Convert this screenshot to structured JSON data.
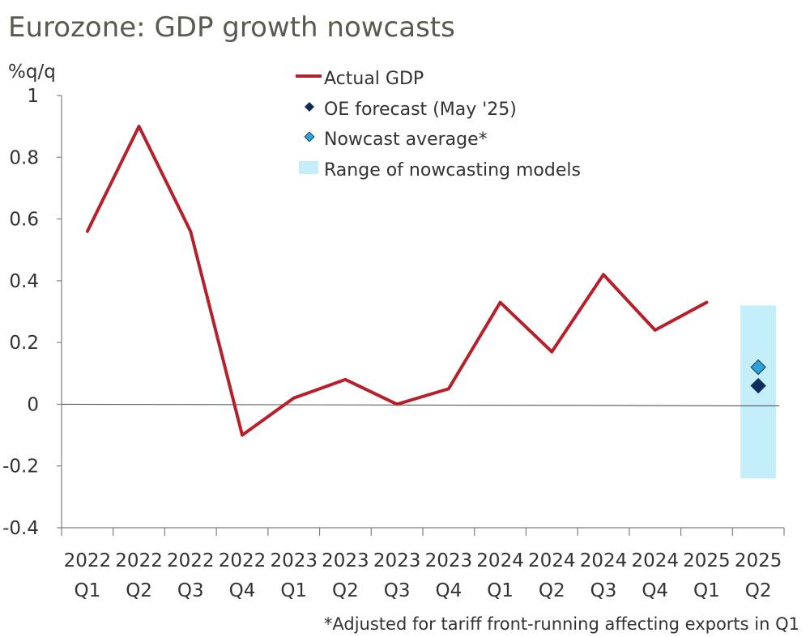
{
  "title": "Eurozone: GDP growth nowcasts",
  "chart_data": {
    "type": "line",
    "title": "Eurozone: GDP growth nowcasts",
    "ylabel": "%q/q",
    "xlabel": "",
    "ylim": [
      -0.4,
      1
    ],
    "yticks": [
      "1",
      "0.8",
      "0.6",
      "0.4",
      "0.2",
      "0",
      "-0.2",
      "-0.4"
    ],
    "ytick_values": [
      1,
      0.8,
      0.6,
      0.4,
      0.2,
      0,
      -0.2,
      -0.4
    ],
    "categories": [
      {
        "year": "2022",
        "q": "Q1"
      },
      {
        "year": "2022",
        "q": "Q2"
      },
      {
        "year": "2022",
        "q": "Q3"
      },
      {
        "year": "2022",
        "q": "Q4"
      },
      {
        "year": "2023",
        "q": "Q1"
      },
      {
        "year": "2023",
        "q": "Q2"
      },
      {
        "year": "2023",
        "q": "Q3"
      },
      {
        "year": "2023",
        "q": "Q4"
      },
      {
        "year": "2024",
        "q": "Q1"
      },
      {
        "year": "2024",
        "q": "Q2"
      },
      {
        "year": "2024",
        "q": "Q3"
      },
      {
        "year": "2024",
        "q": "Q4"
      },
      {
        "year": "2025",
        "q": "Q1"
      },
      {
        "year": "2025",
        "q": "Q2"
      }
    ],
    "series": [
      {
        "name": "Actual GDP",
        "color": "#b5202a",
        "values": [
          0.56,
          0.9,
          0.56,
          -0.1,
          0.02,
          0.08,
          0.0,
          0.05,
          0.33,
          0.17,
          0.42,
          0.24,
          0.33,
          null
        ]
      },
      {
        "name": "OE forecast (May '25)",
        "color": "#0f2d5c",
        "marker": "diamond",
        "points": [
          {
            "index": 13,
            "value": 0.06
          }
        ]
      },
      {
        "name": "Nowcast average*",
        "color": "#2aa3d6",
        "marker": "diamond",
        "points": [
          {
            "index": 13,
            "value": 0.12
          }
        ]
      }
    ],
    "range": {
      "name": "Range of nowcasting models",
      "color": "#c4effa",
      "index": 13,
      "low": -0.24,
      "high": 0.32
    },
    "legend": [
      "Actual GDP",
      "OE forecast (May '25)",
      "Nowcast average*",
      "Range of nowcasting models"
    ],
    "legend_position": "top-center",
    "footnote": "*Adjusted for tariff front-running affecting exports in Q1"
  }
}
